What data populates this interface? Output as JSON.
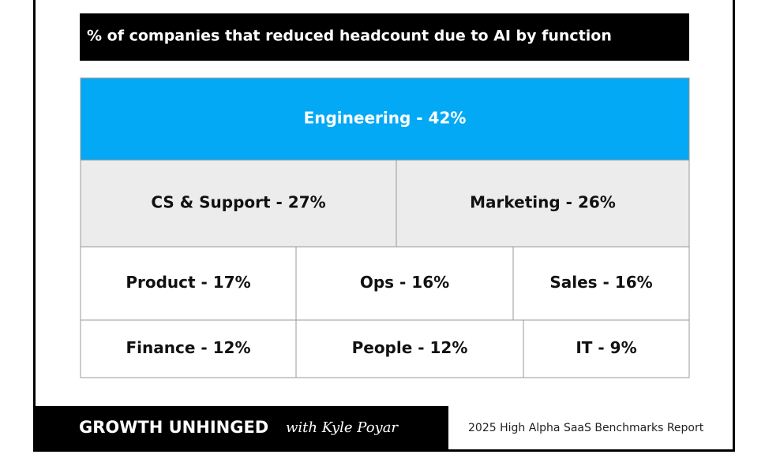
{
  "chart_data": {
    "type": "treemap",
    "title": "% of companies that reduced headcount due to AI by function",
    "values": [
      42,
      27,
      26,
      17,
      16,
      16,
      12,
      12,
      9
    ],
    "value_labels": [
      "Engineering - 42%",
      "CS & Support - 27%",
      "Marketing - 26%",
      "Product - 17%",
      "Ops - 16%",
      "Sales - 16%",
      "Finance - 12%",
      "People - 12%",
      "IT - 9%"
    ],
    "colors": [
      "#03a9f4",
      "#ececec",
      "#ececec",
      "#ffffff",
      "#ffffff",
      "#ffffff",
      "#ffffff",
      "#ffffff",
      "#ffffff"
    ],
    "brand": "GROWTH UNHINGED",
    "brand_byline": "with Kyle Poyar",
    "source": "2025 High Alpha SaaS Benchmarks Report"
  }
}
